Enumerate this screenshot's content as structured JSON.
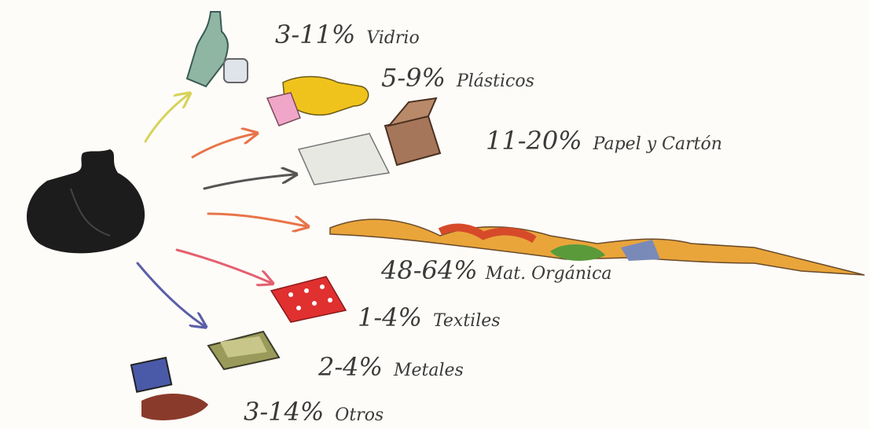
{
  "items": [
    {
      "range": "3-11%",
      "label": "Vidrio"
    },
    {
      "range": "5-9%",
      "label": "Plásticos"
    },
    {
      "range": "11-20%",
      "label": "Papel y Cartón"
    },
    {
      "range": "48-64%",
      "label": "Mat. Orgánica"
    },
    {
      "range": "1-4%",
      "label": "Textiles"
    },
    {
      "range": "2-4%",
      "label": "Metales"
    },
    {
      "range": "3-14%",
      "label": "Otros"
    }
  ]
}
